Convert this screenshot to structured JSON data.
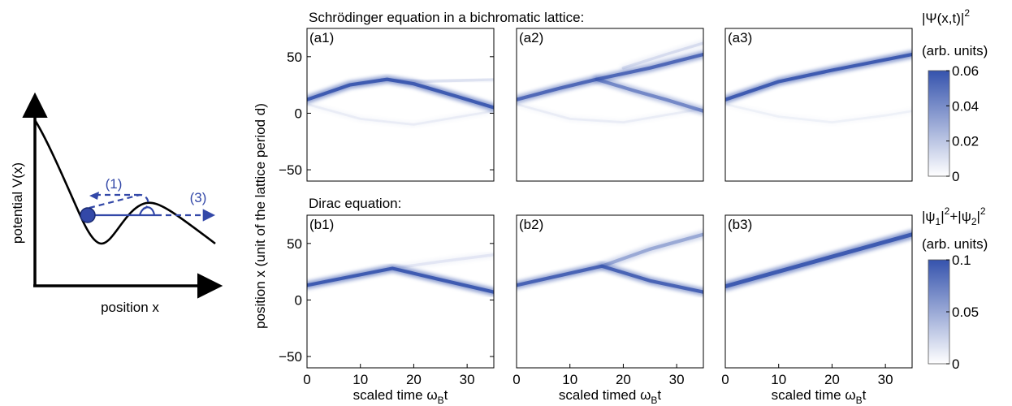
{
  "schematic": {
    "ylabel": "potential V(x)",
    "xlabel": "position x",
    "label_1": "(1)",
    "label_3": "(3)",
    "accent_color": "#3348a8",
    "curve_color": "#000000"
  },
  "figure": {
    "top_title": "Schrödinger equation in a bichromatic lattice:",
    "bottom_title": "Dirac equation:",
    "shared_ylabel": "position x  (unit of the lattice period d)",
    "colormap": {
      "low": "#ffffff",
      "high": "#3553ad"
    }
  },
  "chart_data": [
    {
      "type": "heatmap",
      "id": "a1",
      "panel_label": "(a1)",
      "xlim": [
        0,
        35
      ],
      "ylim": [
        -60,
        75
      ],
      "xticks": [],
      "yticks": [
        -50,
        0,
        50
      ],
      "xlabel": "",
      "ylabel": "",
      "branches": [
        {
          "points": [
            [
              0,
              12
            ],
            [
              8,
              25
            ],
            [
              15,
              30
            ],
            [
              20,
              26
            ],
            [
              28,
              15
            ],
            [
              35,
              5
            ]
          ],
          "weight": 1.0,
          "width": 6
        },
        {
          "points": [
            [
              14,
              30
            ],
            [
              22,
              28
            ],
            [
              35,
              30
            ]
          ],
          "weight": 0.12,
          "width": 5
        },
        {
          "points": [
            [
              0,
              8
            ],
            [
              10,
              -5
            ],
            [
              20,
              -10
            ],
            [
              30,
              -2
            ],
            [
              35,
              2
            ]
          ],
          "weight": 0.08,
          "width": 4
        }
      ]
    },
    {
      "type": "heatmap",
      "id": "a2",
      "panel_label": "(a2)",
      "xlim": [
        0,
        35
      ],
      "ylim": [
        -60,
        75
      ],
      "xticks": [],
      "yticks": [],
      "xlabel": "",
      "ylabel": "",
      "branches": [
        {
          "points": [
            [
              0,
              12
            ],
            [
              8,
              22
            ],
            [
              15,
              30
            ],
            [
              25,
              40
            ],
            [
              35,
              52
            ]
          ],
          "weight": 0.85,
          "width": 6
        },
        {
          "points": [
            [
              15,
              30
            ],
            [
              22,
              20
            ],
            [
              28,
              12
            ],
            [
              35,
              2
            ]
          ],
          "weight": 0.6,
          "width": 6
        },
        {
          "points": [
            [
              20,
              40
            ],
            [
              28,
              52
            ],
            [
              35,
              62
            ]
          ],
          "weight": 0.15,
          "width": 5
        },
        {
          "points": [
            [
              0,
              8
            ],
            [
              10,
              -5
            ],
            [
              20,
              -8
            ],
            [
              30,
              0
            ],
            [
              35,
              4
            ]
          ],
          "weight": 0.08,
          "width": 4
        }
      ]
    },
    {
      "type": "heatmap",
      "id": "a3",
      "panel_label": "(a3)",
      "xlim": [
        0,
        35
      ],
      "ylim": [
        -60,
        75
      ],
      "xticks": [],
      "yticks": [],
      "xlabel": "",
      "ylabel": "",
      "branches": [
        {
          "points": [
            [
              0,
              12
            ],
            [
              10,
              28
            ],
            [
              20,
              38
            ],
            [
              35,
              52
            ]
          ],
          "weight": 1.0,
          "width": 6
        },
        {
          "points": [
            [
              0,
              8
            ],
            [
              10,
              -3
            ],
            [
              20,
              -8
            ],
            [
              30,
              -2
            ],
            [
              35,
              2
            ]
          ],
          "weight": 0.06,
          "width": 4
        }
      ]
    },
    {
      "type": "heatmap",
      "id": "b1",
      "panel_label": "(b1)",
      "xlim": [
        0,
        35
      ],
      "ylim": [
        -60,
        75
      ],
      "xticks": [
        0,
        10,
        20,
        30
      ],
      "yticks": [
        -50,
        0,
        50
      ],
      "xlabel": "scaled time ω",
      "xlabel_sub": "B",
      "xlabel_tail": "t",
      "ylabel": "",
      "branches": [
        {
          "points": [
            [
              0,
              13
            ],
            [
              16,
              28
            ],
            [
              25,
              18
            ],
            [
              35,
              7
            ]
          ],
          "weight": 1.0,
          "width": 6
        },
        {
          "points": [
            [
              16,
              28
            ],
            [
              25,
              34
            ],
            [
              35,
              40
            ]
          ],
          "weight": 0.1,
          "width": 5
        }
      ]
    },
    {
      "type": "heatmap",
      "id": "b2",
      "panel_label": "(b2)",
      "xlim": [
        0,
        35
      ],
      "ylim": [
        -60,
        75
      ],
      "xticks": [
        0,
        10,
        20,
        30
      ],
      "yticks": [],
      "xlabel": "scaled timed ω",
      "xlabel_sub": "B",
      "xlabel_tail": "t",
      "ylabel": "",
      "branches": [
        {
          "points": [
            [
              0,
              13
            ],
            [
              16,
              30
            ],
            [
              25,
              17
            ],
            [
              35,
              7
            ]
          ],
          "weight": 0.9,
          "width": 6
        },
        {
          "points": [
            [
              16,
              30
            ],
            [
              25,
              45
            ],
            [
              35,
              58
            ]
          ],
          "weight": 0.4,
          "width": 6
        }
      ]
    },
    {
      "type": "heatmap",
      "id": "b3",
      "panel_label": "(b3)",
      "xlim": [
        0,
        35
      ],
      "ylim": [
        -60,
        75
      ],
      "xticks": [
        0,
        10,
        20,
        30
      ],
      "yticks": [],
      "xlabel": "scaled time ω",
      "xlabel_sub": "B",
      "xlabel_tail": "t",
      "ylabel": "",
      "branches": [
        {
          "points": [
            [
              0,
              12
            ],
            [
              35,
              58
            ]
          ],
          "weight": 1.0,
          "width": 7
        }
      ]
    }
  ],
  "colorbars": [
    {
      "id": "top",
      "title_line1": "|Ψ(x,t)|",
      "title_sup": "2",
      "title_line2": "(arb. units)",
      "range": [
        0,
        0.06
      ],
      "ticks": [
        "0",
        "0.02",
        "0.04",
        "0.06"
      ],
      "tick_values": [
        0,
        0.02,
        0.04,
        0.06
      ]
    },
    {
      "id": "bottom",
      "title_parts": [
        "|ψ",
        "1",
        "|",
        "2",
        "+|ψ",
        "2",
        "|",
        "2"
      ],
      "title_line2": "(arb. units)",
      "range": [
        0,
        0.1
      ],
      "ticks": [
        "0",
        "0.05",
        "0.1"
      ],
      "tick_values": [
        0,
        0.05,
        0.1
      ]
    }
  ]
}
